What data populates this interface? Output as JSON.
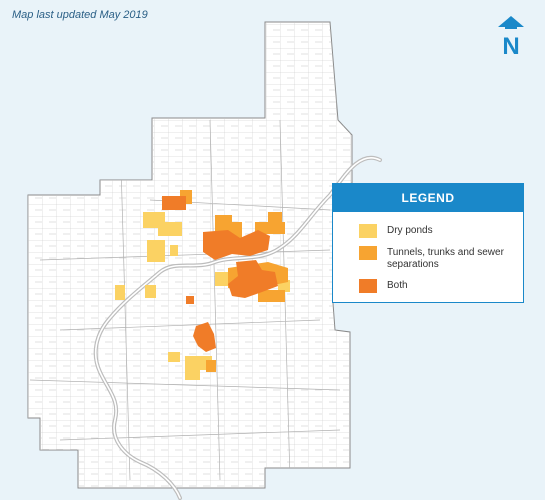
{
  "map": {
    "updated_note": "Map last updated May 2019",
    "north_label": "N"
  },
  "legend": {
    "title": "LEGEND",
    "items": [
      {
        "label": "Dry ponds",
        "color": "#fbd263"
      },
      {
        "label": "Tunnels, trunks and sewer separations",
        "color": "#f7a431"
      },
      {
        "label": "Both",
        "color": "#f07c28"
      }
    ]
  },
  "colors": {
    "background": "#e9f3f9",
    "land": "#ffffff",
    "boundary": "#9a9a9a",
    "river": "#c9c9c9",
    "accent": "#1a88c9"
  }
}
